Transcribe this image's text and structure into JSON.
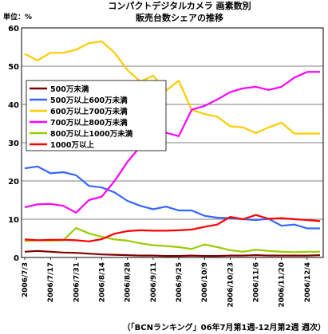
{
  "chart_data": {
    "type": "line",
    "title_line1": "コンパクトデジタルカメラ 画素数別",
    "title_line2": "販売台数シェアの推移",
    "unit_label": "単位：%",
    "source_note": "（「BCNランキング」06年7月第1週-12月第2週 週次）",
    "ylim": [
      0,
      60
    ],
    "y_ticks": [
      0,
      10,
      20,
      30,
      40,
      50,
      60
    ],
    "grid": "horizontal",
    "legend_placement": "left-middle",
    "x": [
      "2006/7/3",
      "2006/7/10",
      "2006/7/17",
      "2006/7/24",
      "2006/7/31",
      "2006/8/7",
      "2006/8/14",
      "2006/8/21",
      "2006/8/28",
      "2006/9/4",
      "2006/9/11",
      "2006/9/18",
      "2006/9/25",
      "2006/10/2",
      "2006/10/9",
      "2006/10/16",
      "2006/10/23",
      "2006/10/30",
      "2006/11/6",
      "2006/11/13",
      "2006/11/20",
      "2006/11/27",
      "2006/12/4",
      "2006/12/11"
    ],
    "x_tick_labels": [
      "2006/7/3",
      "2006/7/17",
      "2006/7/31",
      "2006/8/14",
      "2006/8/28",
      "2006/9/11",
      "2006/9/25",
      "2006/10/9",
      "2006/10/23",
      "2006/11/6",
      "2006/11/20",
      "2006/12/4"
    ],
    "series": [
      {
        "name": "500万未満",
        "color": "#800000",
        "values": [
          1.5,
          1.7,
          1.5,
          1.3,
          1.2,
          1.0,
          0.8,
          0.7,
          0.6,
          0.5,
          0.5,
          0.4,
          0.4,
          0.5,
          0.4,
          0.4,
          0.5,
          0.5,
          0.6,
          0.5,
          0.5,
          0.5,
          0.5,
          0.6
        ]
      },
      {
        "name": "500万以上600万未満",
        "color": "#3366ff",
        "values": [
          23.3,
          23.8,
          22.0,
          22.3,
          21.5,
          18.7,
          18.3,
          17.0,
          14.8,
          13.5,
          12.6,
          13.3,
          12.3,
          12.3,
          10.9,
          10.4,
          10.3,
          10.0,
          9.8,
          10.1,
          8.3,
          8.6,
          7.6,
          7.6
        ]
      },
      {
        "name": "600万以上700万未満",
        "color": "#ffcc00",
        "values": [
          53.2,
          51.5,
          53.5,
          53.5,
          54.3,
          56.0,
          56.5,
          53.5,
          49.0,
          46.0,
          47.5,
          43.6,
          46.2,
          38.6,
          37.5,
          36.8,
          34.3,
          34.0,
          32.5,
          34.0,
          35.2,
          32.4,
          32.4,
          32.4
        ]
      },
      {
        "name": "700万以上800万未満",
        "color": "#ff00ff",
        "values": [
          13.1,
          13.9,
          14.0,
          13.5,
          11.7,
          15.0,
          15.9,
          20.0,
          25.0,
          29.0,
          29.0,
          32.6,
          31.7,
          38.6,
          39.6,
          41.3,
          43.2,
          44.2,
          44.6,
          43.8,
          44.6,
          47.0,
          48.5,
          48.5
        ]
      },
      {
        "name": "800万以上1000万未満",
        "color": "#99cc00",
        "values": [
          4.3,
          4.5,
          4.4,
          4.5,
          7.7,
          6.3,
          5.4,
          4.7,
          4.4,
          3.7,
          3.2,
          3.0,
          2.7,
          2.2,
          3.4,
          2.7,
          1.9,
          1.5,
          2.0,
          1.7,
          1.5,
          1.4,
          1.5,
          1.5
        ]
      },
      {
        "name": "1000万以上",
        "color": "#ff0000",
        "values": [
          4.7,
          4.5,
          4.6,
          4.6,
          4.5,
          4.2,
          4.8,
          6.2,
          6.9,
          7.1,
          7.0,
          7.0,
          7.1,
          7.3,
          8.0,
          8.6,
          10.6,
          10.0,
          11.1,
          10.1,
          10.3,
          10.0,
          9.8,
          9.5
        ]
      }
    ]
  }
}
